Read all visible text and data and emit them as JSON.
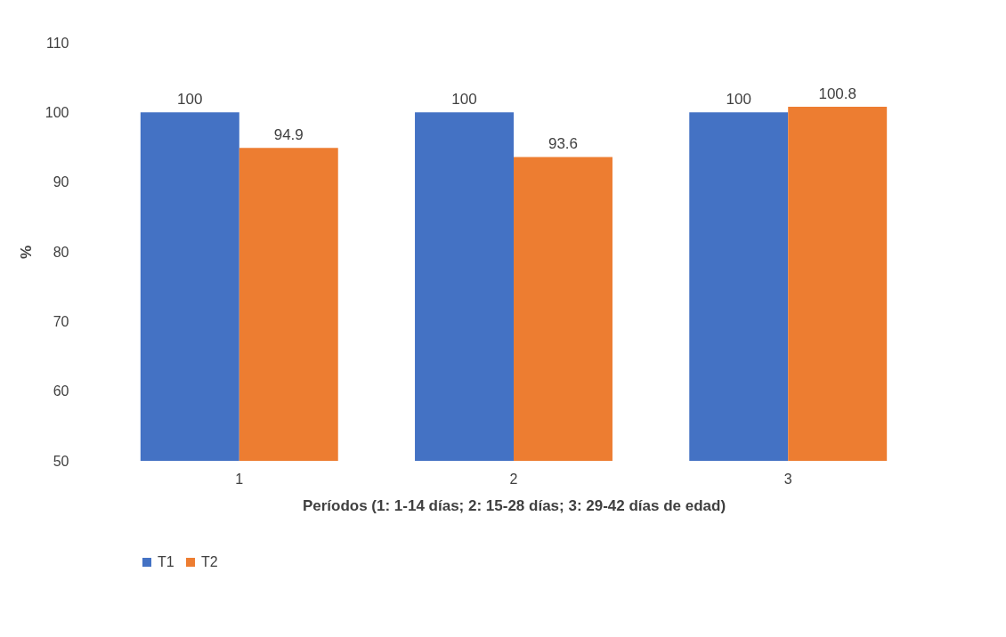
{
  "chart_data": {
    "type": "bar",
    "xlabel": "Períodos (1: 1-14 días; 2: 15-28 días; 3: 29-42 días de edad)",
    "ylabel": "%",
    "categories": [
      "1",
      "2",
      "3"
    ],
    "series": [
      {
        "name": "T1",
        "color": "#4472c4",
        "values": [
          100,
          100,
          100
        ]
      },
      {
        "name": "T2",
        "color": "#ed7d31",
        "values": [
          94.9,
          93.6,
          100.8
        ]
      }
    ],
    "ylim": [
      50,
      110
    ],
    "yticks": [
      50,
      60,
      70,
      80,
      90,
      100,
      110
    ],
    "grid": false,
    "legend": "bottom",
    "data_labels": true
  }
}
